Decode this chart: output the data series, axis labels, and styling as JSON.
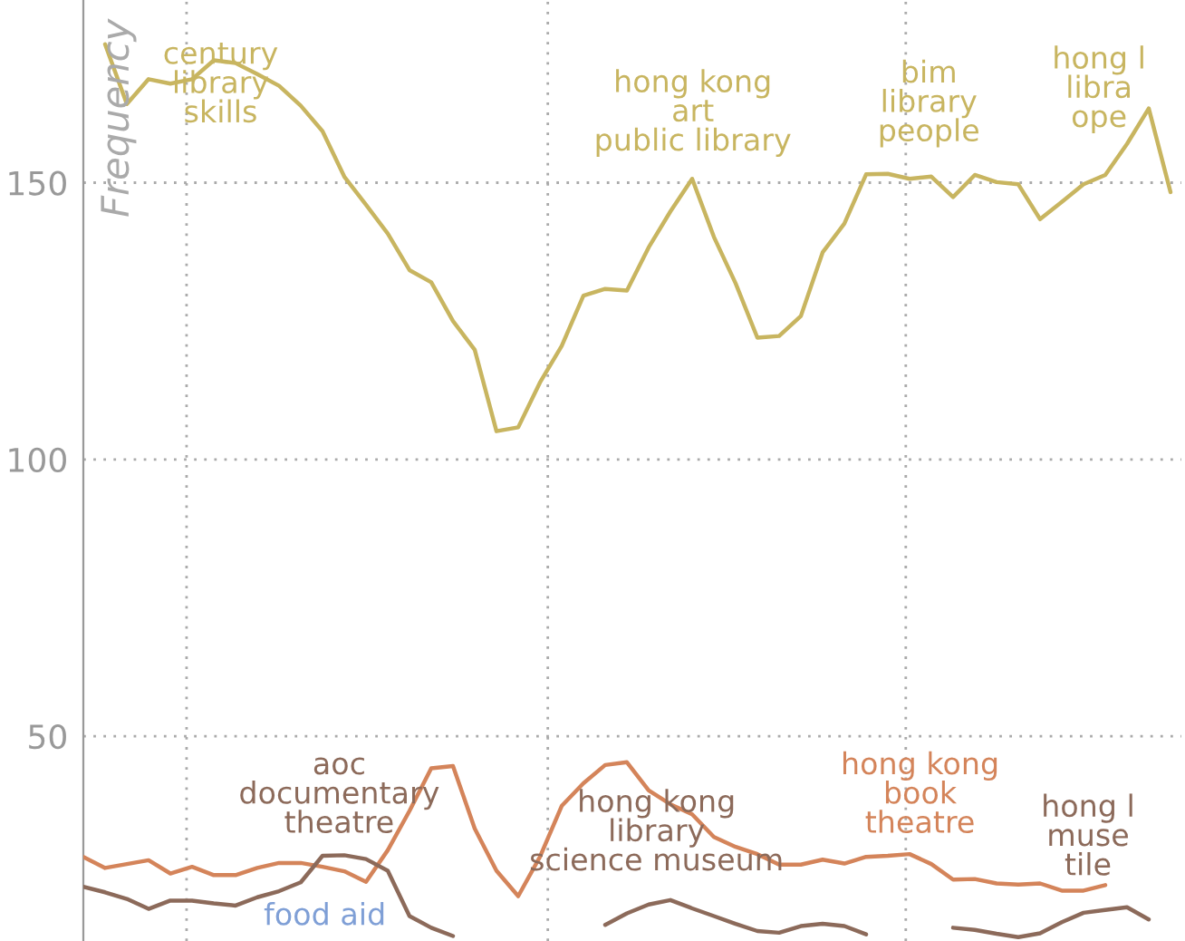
{
  "chart_data": {
    "type": "line",
    "ylabel": "Frequency",
    "ylim": [
      13,
      183
    ],
    "yticks": [
      50,
      100,
      150
    ],
    "grid": true,
    "tick_labels": "y",
    "line_style": "solid",
    "categories": [
      null,
      null,
      null,
      null,
      null,
      null,
      null,
      null,
      null,
      null,
      null,
      null,
      null,
      null,
      null,
      null,
      null,
      null,
      null,
      null,
      null,
      null,
      null,
      null,
      null,
      null,
      null,
      null,
      null,
      null,
      null,
      null,
      null,
      null,
      null,
      null,
      null,
      null,
      null,
      null,
      null,
      null,
      null,
      null,
      null,
      null,
      null,
      null,
      null,
      null,
      null
    ],
    "series": [
      {
        "color": "#c8b560",
        "values": [
          null,
          175,
          164.2,
          168.7,
          167.9,
          168.7,
          172.1,
          171.6,
          169.6,
          167.5,
          163.9,
          159.3,
          151.1,
          146,
          140.8,
          134.2,
          132,
          125,
          119.8,
          105.1,
          105.8,
          113.9,
          120.5,
          129.6,
          130.8,
          130.5,
          138.3,
          144.8,
          150.7,
          140.2,
          131.8,
          122,
          122.3,
          125.9,
          137.4,
          142.6,
          151.5,
          151.6,
          150.7,
          151.1,
          147.4,
          151.4,
          150.1,
          149.7,
          143.4,
          146.5,
          149.7,
          151.4,
          157,
          163.4,
          148.3
        ]
      },
      {
        "color": "#d4845a",
        "values": [
          28.2,
          26.2,
          26.9,
          27.6,
          25.2,
          26.4,
          24.9,
          24.9,
          26.2,
          27.1,
          27.1,
          26.4,
          25.6,
          23.7,
          29.4,
          36.5,
          44.2,
          44.6,
          33.3,
          25.7,
          21.1,
          28.2,
          37.4,
          41.5,
          44.8,
          45.3,
          40.2,
          37.7,
          35.9,
          31.8,
          30,
          28.7,
          26.8,
          26.8,
          27.7,
          27,
          28.2,
          28.4,
          28.7,
          26.9,
          24.1,
          24.2,
          23.4,
          23.2,
          23.4,
          22.1,
          22.1,
          23.1,
          null,
          null,
          null
        ]
      },
      {
        "color": "#8c6a5a",
        "values": [
          22.8,
          21.8,
          20.6,
          18.8,
          20.3,
          20.3,
          19.8,
          19.4,
          20.9,
          22,
          23.6,
          28.4,
          28.5,
          27.8,
          25.7,
          17.5,
          15.4,
          13.9,
          null,
          null,
          null,
          null,
          null,
          null,
          15.9,
          18,
          19.6,
          20.4,
          18.9,
          17.5,
          16.1,
          14.8,
          14.5,
          15.7,
          16.1,
          15.7,
          14.2,
          null,
          null,
          null,
          15.4,
          15,
          14.3,
          13.7,
          14.4,
          16.4,
          18.1,
          18.6,
          19.1,
          16.9,
          null
        ]
      }
    ],
    "annotations": [
      "century\nlibrary\nskills",
      "hong kong\nart\npublic library",
      "bim\nlibrary\npeople",
      "hong l\nlibra\nope",
      "aoc\ndocumentary\ntheatre",
      "hong kong\nlibrary\nscience museum",
      "hong kong\nbook\ntheatre",
      "hong l\nmuse\ntile",
      "food aid"
    ]
  }
}
